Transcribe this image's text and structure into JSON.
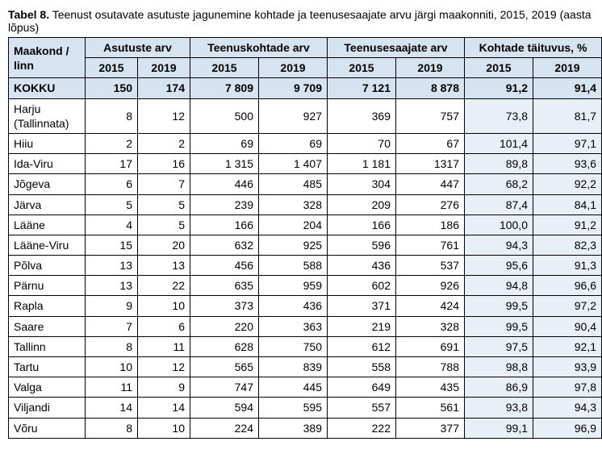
{
  "caption_strong": "Tabel 8.",
  "caption_rest": " Teenust osutavate asutuste jagunemine kohtade ja teenusesaajate arvu järgi maakonniti, 2015, 2019 (aasta lõpus)",
  "headers": {
    "region": "Maakond / linn",
    "group1": "Asutuste arv",
    "group2": "Teenuskohtade arv",
    "group3": "Teenusesaajate arv",
    "group4": "Kohtade täituvus, %",
    "y2015": "2015",
    "y2019": "2019"
  },
  "total": {
    "label": "KOKKU",
    "a15": "150",
    "a19": "174",
    "p15": "7 809",
    "p19": "9 709",
    "r15": "7 121",
    "r19": "8 878",
    "o15": "91,2",
    "o19": "91,4"
  },
  "rows": [
    {
      "label": "Harju (Tallinnata)",
      "a15": "8",
      "a19": "12",
      "p15": "500",
      "p19": "927",
      "r15": "369",
      "r19": "757",
      "o15": "73,8",
      "o19": "81,7"
    },
    {
      "label": "Hiiu",
      "a15": "2",
      "a19": "2",
      "p15": "69",
      "p19": "69",
      "r15": "70",
      "r19": "67",
      "o15": "101,4",
      "o19": "97,1"
    },
    {
      "label": "Ida-Viru",
      "a15": "17",
      "a19": "16",
      "p15": "1 315",
      "p19": "1 407",
      "r15": "1 181",
      "r19": "1317",
      "o15": "89,8",
      "o19": "93,6"
    },
    {
      "label": "Jõgeva",
      "a15": "6",
      "a19": "7",
      "p15": "446",
      "p19": "485",
      "r15": "304",
      "r19": "447",
      "o15": "68,2",
      "o19": "92,2"
    },
    {
      "label": "Järva",
      "a15": "5",
      "a19": "5",
      "p15": "239",
      "p19": "328",
      "r15": "209",
      "r19": "276",
      "o15": "87,4",
      "o19": "84,1"
    },
    {
      "label": "Lääne",
      "a15": "4",
      "a19": "5",
      "p15": "166",
      "p19": "204",
      "r15": "166",
      "r19": "186",
      "o15": "100,0",
      "o19": "91,2"
    },
    {
      "label": "Lääne-Viru",
      "a15": "15",
      "a19": "20",
      "p15": "632",
      "p19": "925",
      "r15": "596",
      "r19": "761",
      "o15": "94,3",
      "o19": "82,3"
    },
    {
      "label": "Põlva",
      "a15": "13",
      "a19": "13",
      "p15": "456",
      "p19": "588",
      "r15": "436",
      "r19": "537",
      "o15": "95,6",
      "o19": "91,3"
    },
    {
      "label": "Pärnu",
      "a15": "13",
      "a19": "22",
      "p15": "635",
      "p19": "959",
      "r15": "602",
      "r19": "926",
      "o15": "94,8",
      "o19": "96,6"
    },
    {
      "label": "Rapla",
      "a15": "9",
      "a19": "10",
      "p15": "373",
      "p19": "436",
      "r15": "371",
      "r19": "424",
      "o15": "99,5",
      "o19": "97,2"
    },
    {
      "label": "Saare",
      "a15": "7",
      "a19": "6",
      "p15": "220",
      "p19": "363",
      "r15": "219",
      "r19": "328",
      "o15": "99,5",
      "o19": "90,4"
    },
    {
      "label": "Tallinn",
      "a15": "8",
      "a19": "11",
      "p15": "628",
      "p19": "750",
      "r15": "612",
      "r19": "691",
      "o15": "97,5",
      "o19": "92,1"
    },
    {
      "label": "Tartu",
      "a15": "10",
      "a19": "12",
      "p15": "565",
      "p19": "839",
      "r15": "558",
      "r19": "788",
      "o15": "98,8",
      "o19": "93,9"
    },
    {
      "label": "Valga",
      "a15": "11",
      "a19": "9",
      "p15": "747",
      "p19": "445",
      "r15": "649",
      "r19": "435",
      "o15": "86,9",
      "o19": "97,8"
    },
    {
      "label": "Viljandi",
      "a15": "14",
      "a19": "14",
      "p15": "594",
      "p19": "595",
      "r15": "557",
      "r19": "561",
      "o15": "93,8",
      "o19": "94,3"
    },
    {
      "label": "Võru",
      "a15": "8",
      "a19": "10",
      "p15": "224",
      "p19": "389",
      "r15": "222",
      "r19": "377",
      "o15": "99,1",
      "o19": "96,9"
    }
  ]
}
